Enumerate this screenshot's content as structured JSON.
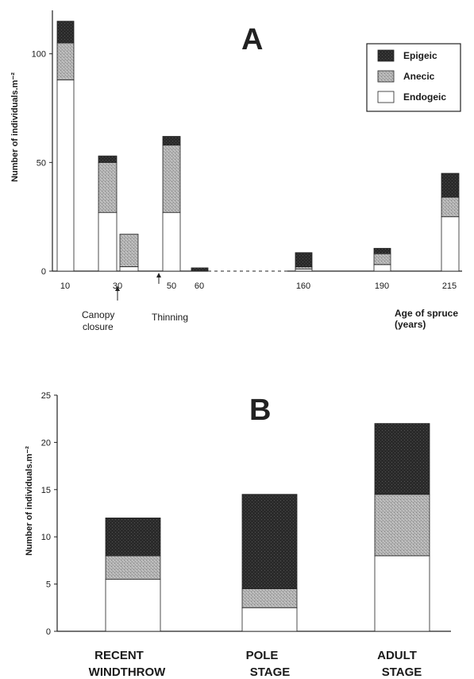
{
  "colors": {
    "Epigeic": "#262626",
    "Anecic": "#a8a8a8",
    "Endogeic": "#ffffff"
  },
  "chart_data": [
    {
      "type": "bar",
      "panel_label": "A",
      "ylabel": "Number of individuals.m⁻²",
      "xlabel": "Age of spruce (years)",
      "ylim": [
        0,
        120
      ],
      "yticks": [
        0,
        50,
        100
      ],
      "categories": [
        "10",
        "30",
        "50",
        "60",
        "160",
        "190",
        "215"
      ],
      "bars": [
        {
          "x": "10",
          "Endogeic": 88,
          "Anecic": 17,
          "Epigeic": 10
        },
        {
          "x": "30",
          "Endogeic": 27,
          "Anecic": 23,
          "Epigeic": 3
        },
        {
          "x": "30b",
          "Endogeic": 2,
          "Anecic": 15,
          "Epigeic": 0
        },
        {
          "x": "50",
          "Endogeic": 27,
          "Anecic": 31,
          "Epigeic": 4
        },
        {
          "x": "60",
          "Endogeic": 0,
          "Anecic": 0,
          "Epigeic": 1.5
        },
        {
          "x": "160",
          "Endogeic": 1,
          "Anecic": 1,
          "Epigeic": 6.5
        },
        {
          "x": "190",
          "Endogeic": 3,
          "Anecic": 5,
          "Epigeic": 2.5
        },
        {
          "x": "215",
          "Endogeic": 25,
          "Anecic": 9,
          "Epigeic": 11
        }
      ],
      "annotations": [
        "Canopy closure",
        "Thinning"
      ],
      "legend": [
        "Epigeic",
        "Anecic",
        "Endogeic"
      ],
      "legend_position": "top-right"
    },
    {
      "type": "bar",
      "panel_label": "B",
      "ylabel": "Number of individuals.m⁻²",
      "ylim": [
        0,
        25
      ],
      "yticks": [
        0,
        5,
        10,
        15,
        20,
        25
      ],
      "categories": [
        "RECENT WINDTHROW",
        "POLE STAGE",
        "ADULT STAGE"
      ],
      "series": [
        {
          "name": "Endogeic",
          "values": [
            5.5,
            2.5,
            8
          ]
        },
        {
          "name": "Anecic",
          "values": [
            2.5,
            2,
            6.5
          ]
        },
        {
          "name": "Epigeic",
          "values": [
            4,
            10,
            7.5
          ]
        }
      ]
    }
  ]
}
